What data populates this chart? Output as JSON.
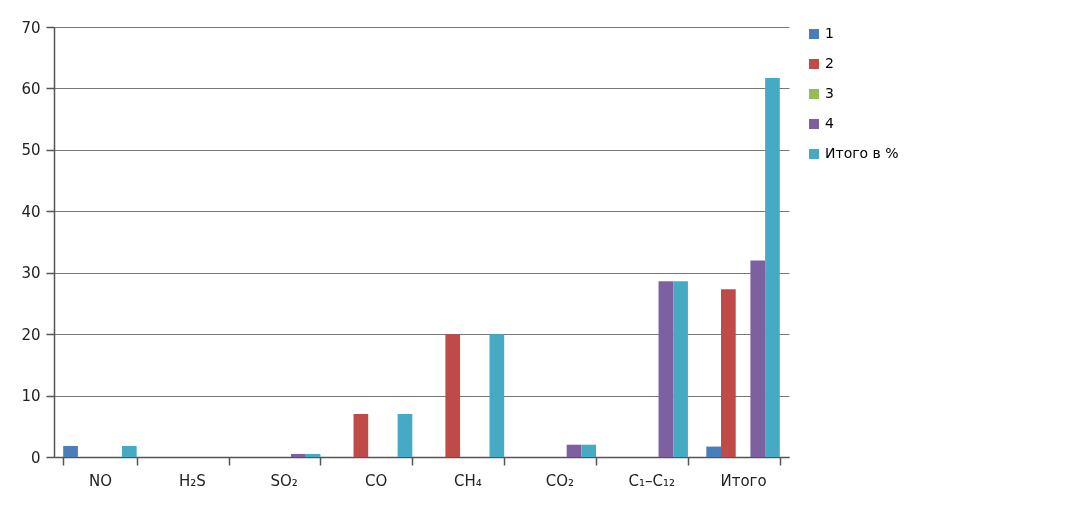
{
  "chart_data": {
    "type": "bar",
    "categories": [
      "NO",
      "H₂S",
      "SO₂",
      "CO",
      "CH₄",
      "CO₂",
      "C₁–C₁₂",
      "Итого"
    ],
    "series": [
      {
        "name": "1",
        "color": "#4a7ebb",
        "values": [
          1.8,
          0,
          0,
          0,
          0,
          0,
          0,
          1.7
        ]
      },
      {
        "name": "2",
        "color": "#be4b48",
        "values": [
          0,
          0,
          0,
          7,
          20,
          0,
          0,
          27.3
        ]
      },
      {
        "name": "3",
        "color": "#98b954",
        "values": [
          0,
          0,
          0,
          0,
          0,
          0,
          0,
          0
        ]
      },
      {
        "name": "4",
        "color": "#7d60a0",
        "values": [
          0,
          0,
          0.5,
          0,
          0,
          2,
          28.6,
          32
        ]
      },
      {
        "name": "Итого в %",
        "color": "#46aac5",
        "values": [
          1.8,
          0,
          0.5,
          7,
          20,
          2,
          28.6,
          61.7
        ]
      }
    ],
    "ylim": [
      0,
      70
    ],
    "yticks": [
      0,
      10,
      20,
      30,
      40,
      50,
      60,
      70
    ],
    "grid": "y",
    "legend": "right"
  }
}
